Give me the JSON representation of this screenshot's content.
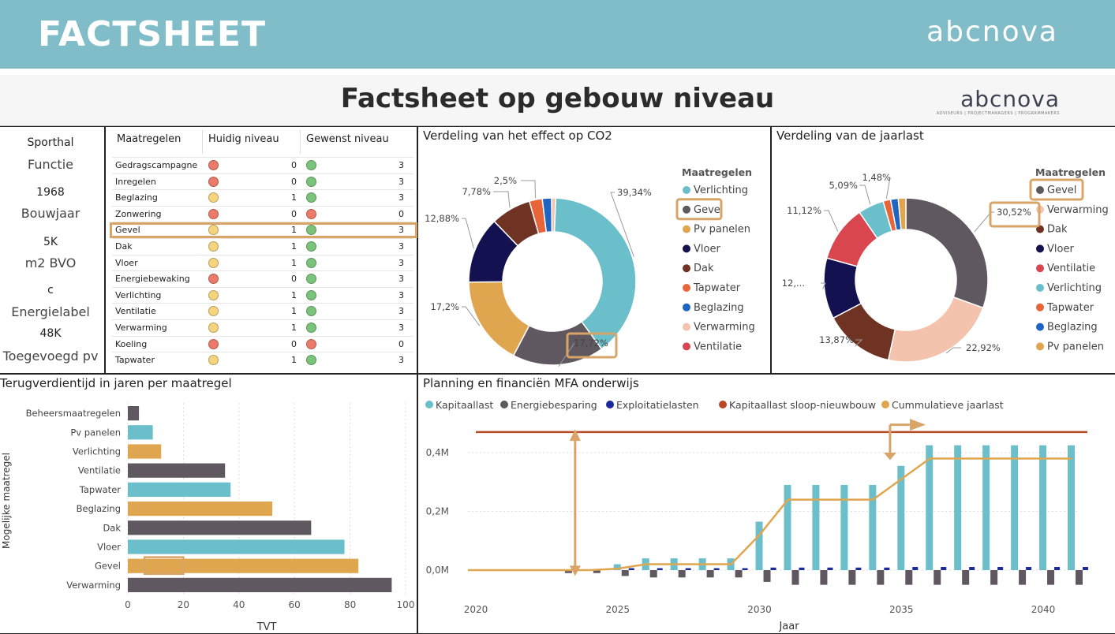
{
  "banner": {
    "title": "FACTSHEET",
    "logo": "abcnova"
  },
  "subheader": {
    "title": "Factsheet op gebouw niveau",
    "logo": "abcnova",
    "logo_sub": "ADVISEURS | PROJECTMANAGERS | PROGRAMMAKERS"
  },
  "summary": [
    {
      "value": "Sporthal",
      "label": "Functie"
    },
    {
      "value": "1968",
      "label": "Bouwjaar"
    },
    {
      "value": "5K",
      "label": "m2 BVO"
    },
    {
      "value": "c",
      "label": "Energielabel"
    },
    {
      "value": "48K",
      "label": "Toegevoegd pv"
    }
  ],
  "measures_table": {
    "headers": [
      "Maatregelen",
      "Huidig niveau",
      "Gewenst niveau"
    ],
    "rows": [
      {
        "name": "Gedragscampagne",
        "current": "0",
        "current_status": "red",
        "desired": "3",
        "desired_status": "green"
      },
      {
        "name": "Inregelen",
        "current": "0",
        "current_status": "red",
        "desired": "3",
        "desired_status": "green"
      },
      {
        "name": "Beglazing",
        "current": "1",
        "current_status": "yellow",
        "desired": "3",
        "desired_status": "green"
      },
      {
        "name": "Zonwering",
        "current": "0",
        "current_status": "red",
        "desired": "0",
        "desired_status": "red"
      },
      {
        "name": "Gevel",
        "current": "1",
        "current_status": "yellow",
        "desired": "3",
        "desired_status": "green",
        "highlight": true
      },
      {
        "name": "Dak",
        "current": "1",
        "current_status": "yellow",
        "desired": "3",
        "desired_status": "green"
      },
      {
        "name": "Vloer",
        "current": "1",
        "current_status": "yellow",
        "desired": "3",
        "desired_status": "green"
      },
      {
        "name": "Energiebewaking",
        "current": "0",
        "current_status": "red",
        "desired": "3",
        "desired_status": "green"
      },
      {
        "name": "Verlichting",
        "current": "1",
        "current_status": "yellow",
        "desired": "3",
        "desired_status": "green"
      },
      {
        "name": "Ventilatie",
        "current": "1",
        "current_status": "yellow",
        "desired": "3",
        "desired_status": "green"
      },
      {
        "name": "Verwarming",
        "current": "1",
        "current_status": "yellow",
        "desired": "3",
        "desired_status": "green"
      },
      {
        "name": "Koeling",
        "current": "0",
        "current_status": "red",
        "desired": "0",
        "desired_status": "red"
      },
      {
        "name": "Tapwater",
        "current": "1",
        "current_status": "yellow",
        "desired": "3",
        "desired_status": "green"
      }
    ]
  },
  "colors": {
    "red": "#ec7a6a",
    "yellow": "#f6d47e",
    "green": "#7cc37a",
    "highlight": "#d9a468",
    "teal": "#6bbfcb",
    "gray": "#605860",
    "orange": "#e0a64f",
    "navy": "#13114f",
    "brown": "#6e3322",
    "tapwater": "#e8653a",
    "blue": "#1f64c0",
    "pink": "#f4c3ae",
    "crimson": "#da4650",
    "darkred": "#b84a25"
  },
  "chart_data": [
    {
      "type": "pie",
      "title": "Verdeling van het effect op CO2",
      "legend_title": "Maatregelen",
      "legend": [
        "Verlichting",
        "Gevel",
        "Pv panelen",
        "Vloer",
        "Dak",
        "Tapwater",
        "Beglazing",
        "Verwarming",
        "Ventilatie"
      ],
      "highlight_legend": "Gevel",
      "slices": [
        {
          "name": "Verlichting",
          "value": 39.34,
          "label": "39,34%",
          "color": "#6bbfcb"
        },
        {
          "name": "Gevel",
          "value": 17.72,
          "label": "17,72%",
          "color": "#605860",
          "highlight": true
        },
        {
          "name": "Pv panelen",
          "value": 17.2,
          "label": "17,2%",
          "color": "#e0a64f"
        },
        {
          "name": "Vloer",
          "value": 12.88,
          "label": "12,88%",
          "color": "#13114f"
        },
        {
          "name": "Dak",
          "value": 7.78,
          "label": "7,78%",
          "color": "#6e3322"
        },
        {
          "name": "Tapwater",
          "value": 2.5,
          "label": "2,5%",
          "color": "#e8653a"
        },
        {
          "name": "Beglazing",
          "value": 1.8,
          "label": "",
          "color": "#1f64c0"
        },
        {
          "name": "Verwarming",
          "value": 0.78,
          "label": "",
          "color": "#f4c3ae"
        }
      ]
    },
    {
      "type": "pie",
      "title": "Verdeling van de jaarlast",
      "legend_title": "Maatregelen",
      "legend": [
        "Gevel",
        "Verwarming",
        "Dak",
        "Vloer",
        "Ventilatie",
        "Verlichting",
        "Tapwater",
        "Beglazing",
        "Pv panelen"
      ],
      "highlight_legend": "Gevel",
      "slices": [
        {
          "name": "Gevel",
          "value": 30.52,
          "label": "30,52%",
          "color": "#605860",
          "highlight": true
        },
        {
          "name": "Verwarming",
          "value": 22.92,
          "label": "22,92%",
          "color": "#f4c3ae"
        },
        {
          "name": "Dak",
          "value": 13.87,
          "label": "13,87%",
          "color": "#6e3322"
        },
        {
          "name": "Vloer",
          "value": 12.0,
          "label": "12,...",
          "color": "#13114f"
        },
        {
          "name": "Ventilatie",
          "value": 11.12,
          "label": "11,12%",
          "color": "#da4650"
        },
        {
          "name": "Verlichting",
          "value": 5.09,
          "label": "5,09%",
          "color": "#6bbfcb"
        },
        {
          "name": "Tapwater",
          "value": 1.48,
          "label": "1,48%",
          "color": "#e8653a"
        },
        {
          "name": "Beglazing",
          "value": 1.5,
          "label": "",
          "color": "#1f64c0"
        },
        {
          "name": "Pv panelen",
          "value": 1.5,
          "label": "",
          "color": "#e0a64f"
        }
      ]
    },
    {
      "type": "bar",
      "orientation": "horizontal",
      "title": "Terugverdientijd in jaren per maatregel",
      "xlabel": "TVT",
      "ylabel": "Mogelijke maatregel",
      "xlim": [
        0,
        100
      ],
      "xticks": [
        0,
        20,
        40,
        60,
        80,
        100
      ],
      "categories": [
        "Beheersmaatregelen",
        "Pv panelen",
        "Verlichting",
        "Ventilatie",
        "Tapwater",
        "Beglazing",
        "Dak",
        "Vloer",
        "Gevel",
        "Verwarming"
      ],
      "values": [
        4,
        9,
        12,
        35,
        37,
        52,
        66,
        78,
        83,
        95
      ],
      "colors": [
        "#605860",
        "#6bbfcb",
        "#e0a64f",
        "#605860",
        "#6bbfcb",
        "#e0a64f",
        "#605860",
        "#6bbfcb",
        "#e0a64f",
        "#605860"
      ],
      "highlight_category": "Gevel"
    },
    {
      "type": "bar",
      "title": "Planning en financiën MFA onderwijs",
      "xlabel": "Jaar",
      "ylabel": "",
      "ylim": [
        -0.06,
        0.5
      ],
      "yticks": [
        0,
        0.2,
        0.4
      ],
      "ytick_labels": [
        "0,0M",
        "0,2M",
        "0,4M"
      ],
      "xticks": [
        2020,
        2025,
        2030,
        2035,
        2040
      ],
      "x": [
        2020,
        2021,
        2022,
        2023,
        2024,
        2025,
        2026,
        2027,
        2028,
        2029,
        2030,
        2031,
        2032,
        2033,
        2034,
        2035,
        2036,
        2037,
        2038,
        2039,
        2040,
        2041
      ],
      "series": [
        {
          "name": "Kapitaallast",
          "color": "#6bbfcb",
          "values": [
            0,
            0,
            0,
            0,
            0,
            0.02,
            0.04,
            0.04,
            0.04,
            0.04,
            0.165,
            0.29,
            0.29,
            0.29,
            0.29,
            0.355,
            0.425,
            0.425,
            0.425,
            0.425,
            0.425,
            0.425
          ]
        },
        {
          "name": "Energiebesparing",
          "color": "#605860",
          "values": [
            0,
            0,
            0,
            -0.01,
            -0.01,
            -0.02,
            -0.025,
            -0.025,
            -0.025,
            -0.025,
            -0.04,
            -0.05,
            -0.05,
            -0.05,
            -0.05,
            -0.05,
            -0.05,
            -0.05,
            -0.05,
            -0.05,
            -0.05,
            -0.05
          ]
        },
        {
          "name": "Exploitatielasten",
          "color": "#1b2a9a",
          "values": [
            0,
            0,
            0,
            0,
            0,
            0.004,
            0.004,
            0.004,
            0.004,
            0.004,
            0.006,
            0.006,
            0.006,
            0.006,
            0.006,
            0.008,
            0.008,
            0.008,
            0.008,
            0.008,
            0.008,
            0.008
          ]
        },
        {
          "name": "Kapitaallast sloop-nieuwbouw",
          "color": "#b84a25",
          "type": "hline",
          "value": 0.47
        },
        {
          "name": "Cummulatieve jaarlast",
          "color": "#e0a64f",
          "type": "line",
          "values": [
            0,
            0,
            0,
            0,
            0,
            0.005,
            0.02,
            0.02,
            0.02,
            0.02,
            0.12,
            0.24,
            0.24,
            0.24,
            0.24,
            0.31,
            0.38,
            0.38,
            0.38,
            0.38,
            0.38,
            0.38
          ]
        }
      ]
    }
  ]
}
